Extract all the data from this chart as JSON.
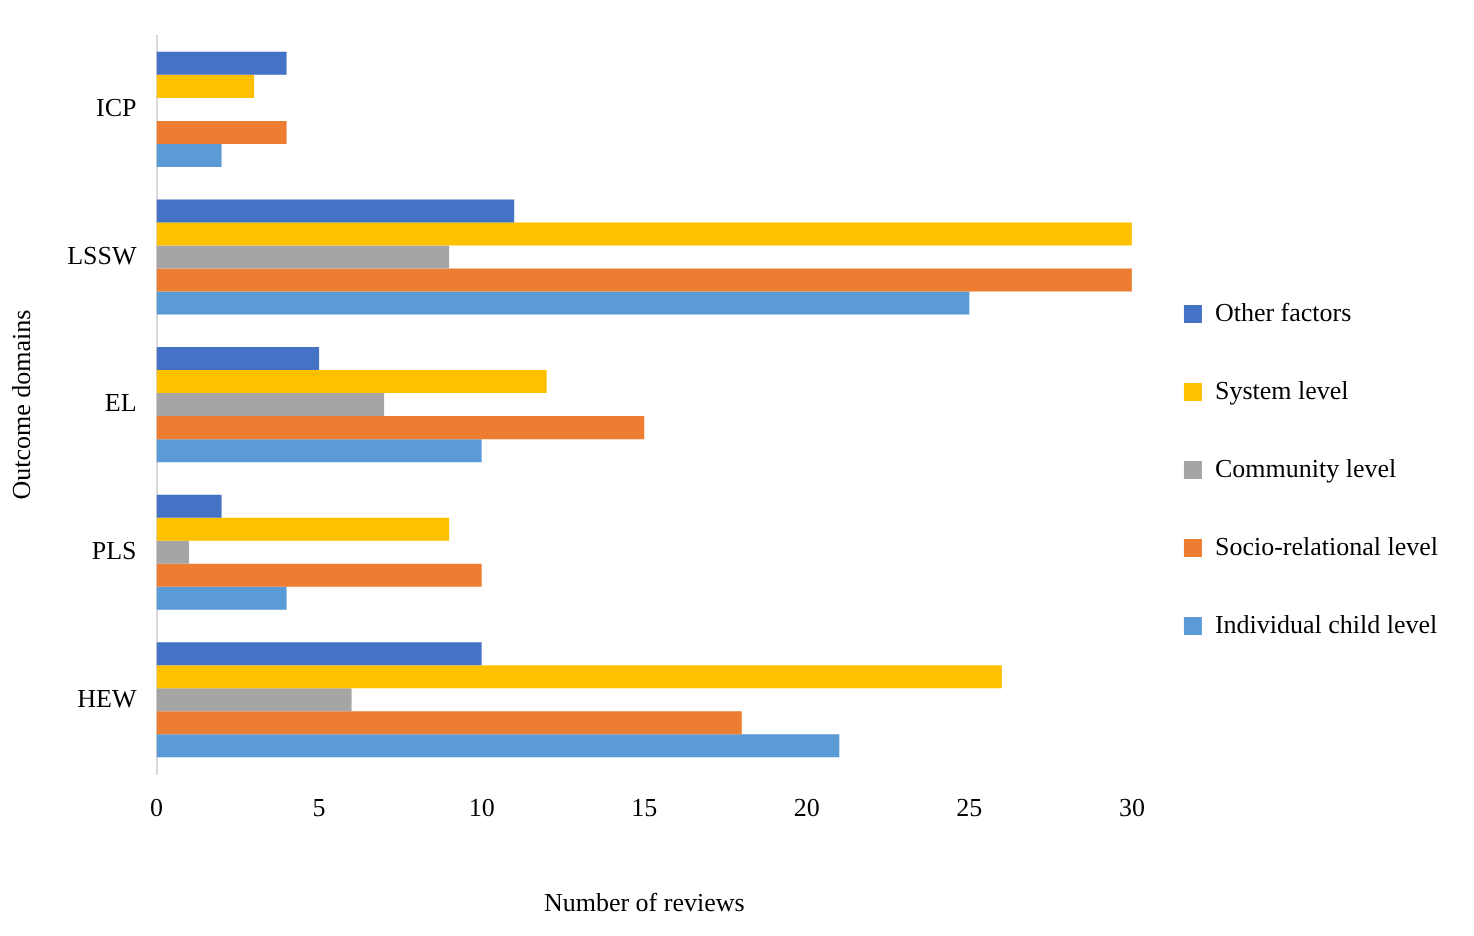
{
  "chart_data": {
    "type": "bar",
    "orientation": "horizontal",
    "xlabel": "Number of reviews",
    "ylabel": "Outcome domains",
    "categories": [
      "ICP",
      "LSSW",
      "EL",
      "PLS",
      "HEW"
    ],
    "series": [
      {
        "name": "Other factors",
        "color": "#4472c4",
        "values": [
          4,
          11,
          5,
          2,
          10
        ]
      },
      {
        "name": "System level",
        "color": "#ffc000",
        "values": [
          3,
          30,
          12,
          9,
          26
        ]
      },
      {
        "name": "Community level",
        "color": "#a5a5a5",
        "values": [
          0,
          9,
          7,
          1,
          6
        ]
      },
      {
        "name": "Socio-relational level",
        "color": "#ed7d31",
        "values": [
          4,
          30,
          15,
          10,
          18
        ]
      },
      {
        "name": "Individual child level",
        "color": "#5b9bd5",
        "values": [
          2,
          25,
          10,
          4,
          21
        ]
      }
    ],
    "xlim": [
      0,
      30
    ],
    "xticks": [
      0,
      5,
      10,
      15,
      20,
      25,
      30
    ],
    "grid": false,
    "legend": "right"
  }
}
